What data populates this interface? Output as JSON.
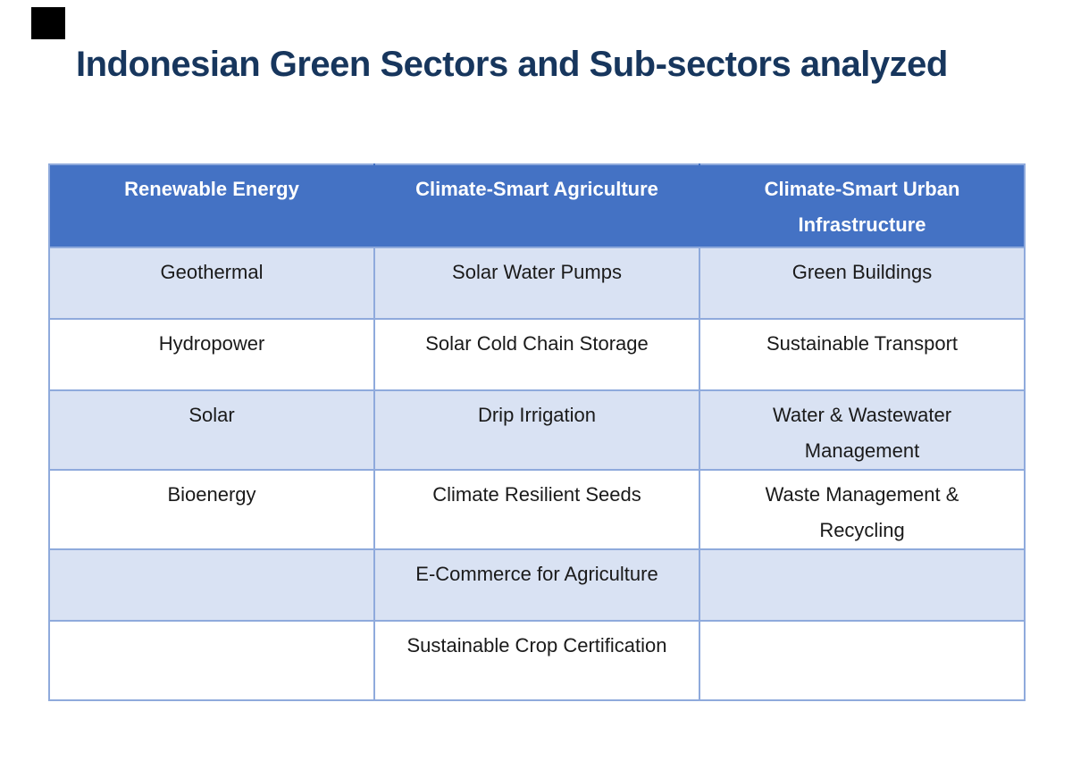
{
  "title": "Indonesian Green Sectors and Sub-sectors analyzed",
  "decorations": {
    "black_corner_box": "solid black square, top-left corner"
  },
  "colors": {
    "title_text": "#17365d",
    "header_bg": "#4472c4",
    "header_text": "#ffffff",
    "banded_row_bg": "#d9e2f3",
    "plain_row_bg": "#ffffff",
    "border": "#8faadc",
    "cell_text": "#1a1a1a"
  },
  "table": {
    "headers": [
      "Renewable Energy",
      "Climate-Smart Agriculture",
      "Climate-Smart Urban\nInfrastructure"
    ],
    "rows": [
      [
        "Geothermal",
        "Solar Water Pumps",
        "Green Buildings"
      ],
      [
        "Hydropower",
        "Solar Cold Chain Storage",
        "Sustainable Transport"
      ],
      [
        "Solar",
        "Drip Irrigation",
        "Water & Wastewater\nManagement"
      ],
      [
        "Bioenergy",
        "Climate Resilient Seeds",
        "Waste Management &\nRecycling"
      ],
      [
        "",
        "E-Commerce for Agriculture",
        ""
      ],
      [
        "",
        "Sustainable Crop Certification",
        ""
      ]
    ]
  }
}
